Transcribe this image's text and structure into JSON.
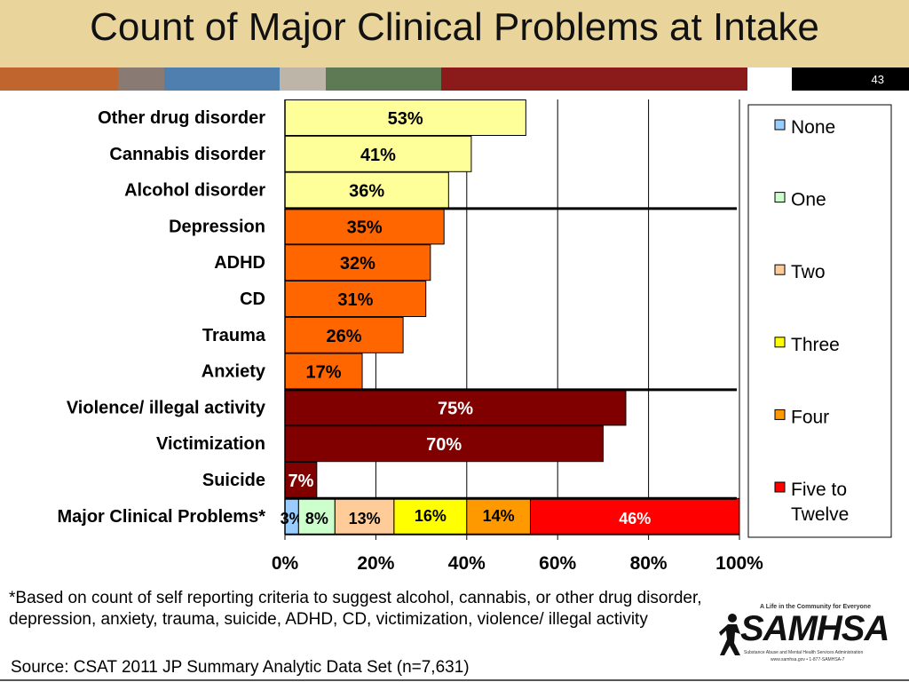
{
  "title": "Count of Major Clinical Problems at Intake",
  "slide_number": "43",
  "stripe_colors": [
    "#c0652e",
    "#8a7a74",
    "#4f7fae",
    "#bdb5a8",
    "#5e7a55",
    "#8b1a1a",
    "#ffffff",
    "#000000"
  ],
  "footnote": "*Based on count of self reporting criteria to suggest alcohol, cannabis, or other drug disorder, depression, anxiety, trauma, suicide, ADHD, CD, victimization, violence/ illegal activity",
  "source": "Source: CSAT 2011 JP Summary Analytic Data Set (n=7,631)",
  "logo": {
    "tagline": "A Life in the Community for Everyone",
    "wordmark": "SAMHSA",
    "subtitle": "Substance Abuse and Mental Health Services Administration",
    "url": "www.samhsa.gov • 1-877-SAMHSA-7"
  },
  "chart_data": {
    "type": "bar",
    "orientation": "horizontal",
    "xlim": [
      0,
      100
    ],
    "x_ticks": [
      "0%",
      "20%",
      "40%",
      "60%",
      "80%",
      "100%"
    ],
    "grid": true,
    "legend_position": "right",
    "categories": [
      "Other drug disorder",
      "Cannabis disorder",
      "Alcohol disorder",
      "Depression",
      "ADHD",
      "CD",
      "Trauma",
      "Anxiety",
      "Violence/ illegal activity",
      "Victimization",
      "Suicide"
    ],
    "values": [
      53,
      41,
      36,
      35,
      32,
      31,
      26,
      17,
      75,
      70,
      7
    ],
    "labels": [
      "53%",
      "41%",
      "36%",
      "35%",
      "32%",
      "31%",
      "26%",
      "17%",
      "75%",
      "70%",
      "7%"
    ],
    "bar_colors": [
      "#ffff99",
      "#ffff99",
      "#ffff99",
      "#ff6600",
      "#ff6600",
      "#ff6600",
      "#ff6600",
      "#ff6600",
      "#800000",
      "#800000",
      "#800000"
    ],
    "label_colors": [
      "#000000",
      "#000000",
      "#000000",
      "#000000",
      "#000000",
      "#000000",
      "#000000",
      "#000000",
      "#ffffff",
      "#ffffff",
      "#ffffff"
    ],
    "stacked": {
      "category": "Major Clinical Problems*",
      "series": [
        {
          "name": "None",
          "value": 3,
          "label": "3%",
          "color": "#99ccff"
        },
        {
          "name": "One",
          "value": 8,
          "label": "8%",
          "color": "#ccffcc"
        },
        {
          "name": "Two",
          "value": 13,
          "label": "13%",
          "color": "#ffcc99"
        },
        {
          "name": "Three",
          "value": 16,
          "label": "16%",
          "color": "#ffff00"
        },
        {
          "name": "Four",
          "value": 14,
          "label": "14%",
          "color": "#ff9900"
        },
        {
          "name": "Five to Twelve",
          "value": 46,
          "label": "46%",
          "color": "#ff0000"
        }
      ]
    },
    "group_separators_after": [
      "Alcohol disorder",
      "Anxiety",
      "Suicide"
    ]
  }
}
